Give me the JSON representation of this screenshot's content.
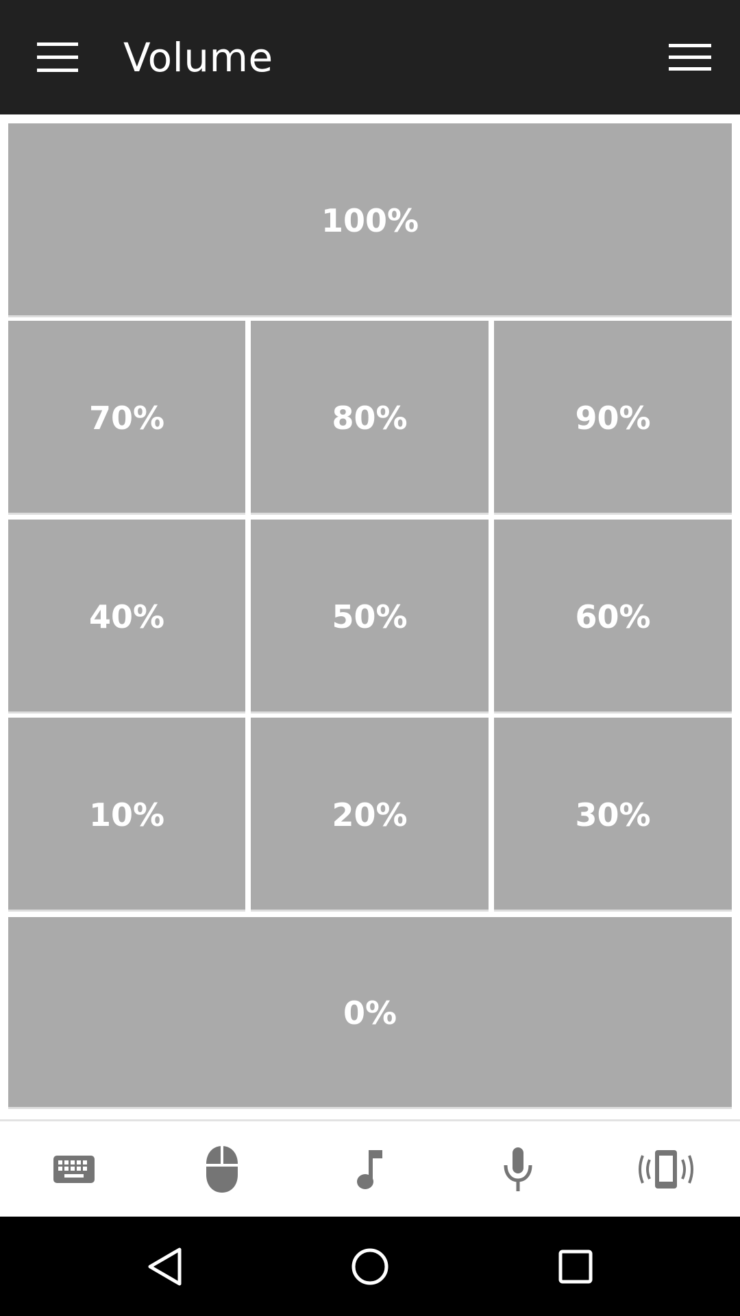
{
  "app_bar": {
    "title": "Volume",
    "left_icon": "hamburger-menu-icon",
    "right_icon": "overflow-menu-icon",
    "background": "#212121"
  },
  "volume_grid": {
    "tile_color": "#aaaaaa",
    "rows": [
      [
        "100%"
      ],
      [
        "70%",
        "80%",
        "90%"
      ],
      [
        "40%",
        "50%",
        "60%"
      ],
      [
        "10%",
        "20%",
        "30%"
      ],
      [
        "0%"
      ]
    ]
  },
  "bottom_nav": {
    "items": [
      {
        "icon": "keyboard-icon"
      },
      {
        "icon": "mouse-icon"
      },
      {
        "icon": "music-note-icon"
      },
      {
        "icon": "microphone-icon"
      },
      {
        "icon": "phone-vibrate-icon"
      }
    ],
    "icon_color": "#757575"
  },
  "system_nav": {
    "items": [
      {
        "icon": "back-icon"
      },
      {
        "icon": "home-icon"
      },
      {
        "icon": "recents-icon"
      }
    ]
  }
}
